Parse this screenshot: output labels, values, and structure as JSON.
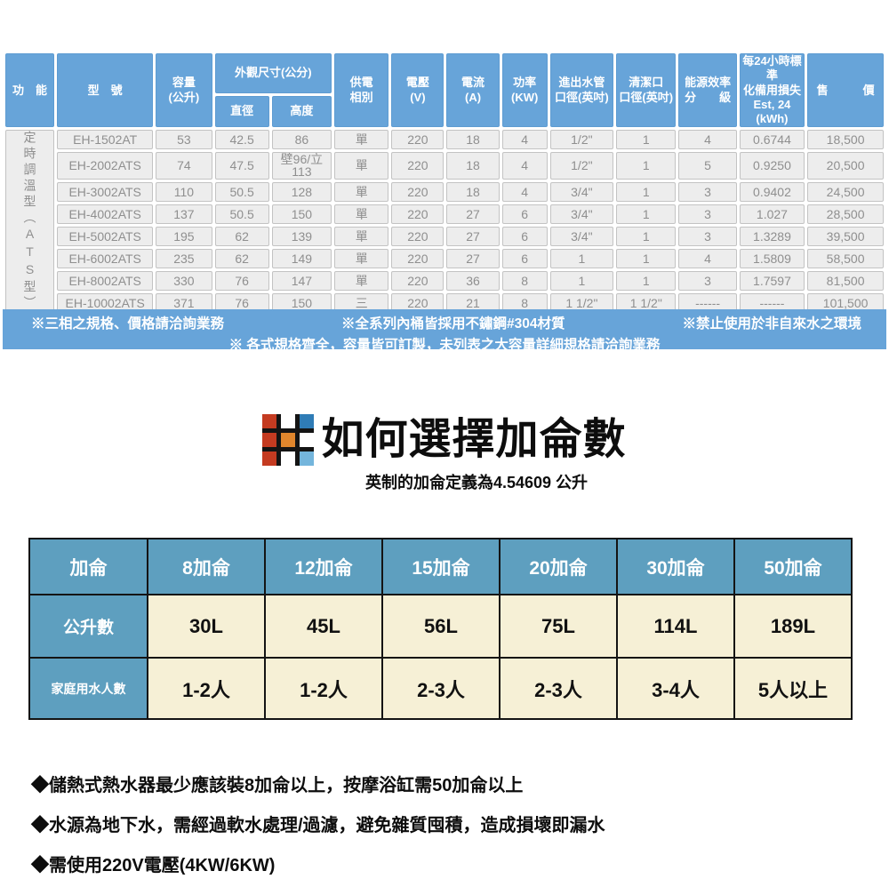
{
  "colors": {
    "spec_header_blue": "#67a4d9",
    "spec_cell_gray": "#ededed",
    "spec_text_gray": "#8f8f8f",
    "gallon_blue": "#5e9fbf",
    "gallon_cream": "#f6f0d6",
    "grid_line_black": "#141414"
  },
  "spec_table": {
    "header": {
      "function": "功　能",
      "model": "型　號",
      "capacity": "容量\n(公升)",
      "dimensions": "外觀尺寸(公分)",
      "diameter": "直徑",
      "height": "高度",
      "power_phase": "供電\n相別",
      "voltage": "電壓\n(V)",
      "current": "電流\n(A)",
      "power": "功率\n(KW)",
      "pipe": "進出水管\n口徑(英吋)",
      "clean_port": "清潔口\n口徑(英吋)",
      "efficiency": "能源效率\n分　　級",
      "standby_loss": "每24小時標準\n化備用損失\nEst, 24 (kWh)",
      "price": "售　　　價"
    },
    "function_label": "定時調溫型（ATS型）",
    "rows": [
      {
        "model": "EH-1502AT",
        "capacity": "53",
        "diameter": "42.5",
        "height": "86",
        "phase": "單",
        "voltage": "220",
        "current": "18",
        "power": "4",
        "pipe": "1/2\"",
        "clean": "1",
        "eff": "4",
        "loss": "0.6744",
        "price": "18,500"
      },
      {
        "model": "EH-2002ATS",
        "capacity": "74",
        "diameter": "47.5",
        "height": "壁96/立113",
        "phase": "單",
        "voltage": "220",
        "current": "18",
        "power": "4",
        "pipe": "1/2\"",
        "clean": "1",
        "eff": "5",
        "loss": "0.9250",
        "price": "20,500"
      },
      {
        "model": "EH-3002ATS",
        "capacity": "110",
        "diameter": "50.5",
        "height": "128",
        "phase": "單",
        "voltage": "220",
        "current": "18",
        "power": "4",
        "pipe": "3/4\"",
        "clean": "1",
        "eff": "3",
        "loss": "0.9402",
        "price": "24,500"
      },
      {
        "model": "EH-4002ATS",
        "capacity": "137",
        "diameter": "50.5",
        "height": "150",
        "phase": "單",
        "voltage": "220",
        "current": "27",
        "power": "6",
        "pipe": "3/4\"",
        "clean": "1",
        "eff": "3",
        "loss": "1.027",
        "price": "28,500"
      },
      {
        "model": "EH-5002ATS",
        "capacity": "195",
        "diameter": "62",
        "height": "139",
        "phase": "單",
        "voltage": "220",
        "current": "27",
        "power": "6",
        "pipe": "3/4\"",
        "clean": "1",
        "eff": "3",
        "loss": "1.3289",
        "price": "39,500"
      },
      {
        "model": "EH-6002ATS",
        "capacity": "235",
        "diameter": "62",
        "height": "149",
        "phase": "單",
        "voltage": "220",
        "current": "27",
        "power": "6",
        "pipe": "1",
        "clean": "1",
        "eff": "4",
        "loss": "1.5809",
        "price": "58,500"
      },
      {
        "model": "EH-8002ATS",
        "capacity": "330",
        "diameter": "76",
        "height": "147",
        "phase": "單",
        "voltage": "220",
        "current": "36",
        "power": "8",
        "pipe": "1",
        "clean": "1",
        "eff": "3",
        "loss": "1.7597",
        "price": "81,500"
      },
      {
        "model": "EH-10002ATS",
        "capacity": "371",
        "diameter": "76",
        "height": "150",
        "phase": "三",
        "voltage": "220",
        "current": "21",
        "power": "8",
        "pipe": "1 1/2\"",
        "clean": "1 1/2\"",
        "eff": "------",
        "loss": "------",
        "price": "101,500"
      }
    ],
    "notes_line1": [
      "※三相之規格、價格請洽詢業務",
      "※全系列內桶皆採用不鏽鋼#304材質",
      "※禁止使用於非自來水之環境"
    ],
    "notes_line2": "※ 各式規格齊全，容量皆可訂製，未列表之大容量詳細規格請洽詢業務"
  },
  "gallon_section": {
    "title": "如何選擇加侖數",
    "subtitle": "英制的加侖定義為4.54609 公升",
    "logo_grid": [
      [
        "#c43b21",
        "#ffffff",
        "#2f7cb6"
      ],
      [
        "#c43b21",
        "#e0862d",
        "#ffffff"
      ],
      [
        "#c43b21",
        "#ffffff",
        "#74b5dc"
      ]
    ],
    "table": {
      "rows": [
        {
          "label": "加侖",
          "cells": [
            "8加侖",
            "12加侖",
            "15加侖",
            "20加侖",
            "30加侖",
            "50加侖"
          ]
        },
        {
          "label": "公升數",
          "cells": [
            "30L",
            "45L",
            "56L",
            "75L",
            "114L",
            "189L"
          ]
        },
        {
          "label": "家庭用水人數",
          "cells": [
            "1-2人",
            "1-2人",
            "2-3人",
            "2-3人",
            "3-4人",
            "5人以上"
          ]
        }
      ]
    }
  },
  "footnotes": [
    "◆儲熱式熱水器最少應該裝8加侖以上，按摩浴缸需50加侖以上",
    "◆水源為地下水，需經過軟水處理/過濾，避免雜質囤積，造成損壞即漏水",
    "◆需使用220V電壓(4KW/6KW)"
  ]
}
